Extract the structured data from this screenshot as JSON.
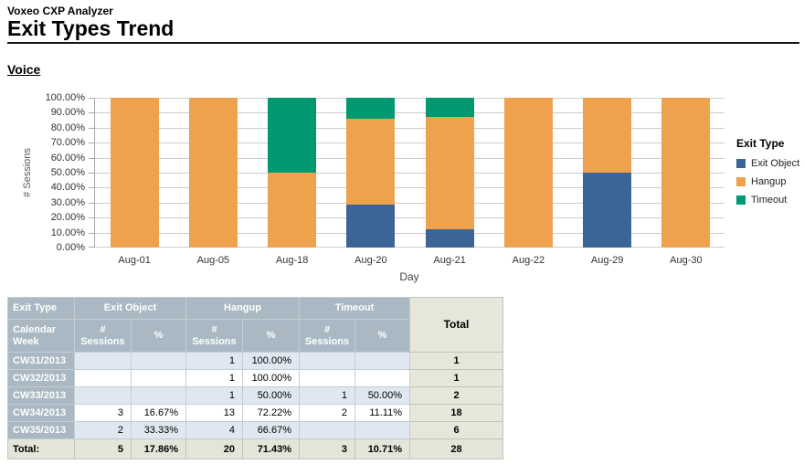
{
  "header": {
    "app_name": "Voxeo CXP Analyzer",
    "page_title": "Exit Types Trend",
    "section_title": "Voice"
  },
  "chart_data": {
    "type": "bar",
    "stacked": true,
    "title": "",
    "xlabel": "Day",
    "ylabel": "# Sessions",
    "categories": [
      "Aug-01",
      "Aug-05",
      "Aug-18",
      "Aug-20",
      "Aug-21",
      "Aug-22",
      "Aug-29",
      "Aug-30"
    ],
    "series": [
      {
        "name": "Exit Object",
        "color": "#3A6596",
        "values": [
          0,
          0,
          0,
          28.57,
          12.5,
          0,
          50,
          0
        ]
      },
      {
        "name": "Hangup",
        "color": "#EFA24E",
        "values": [
          100,
          100,
          50,
          57.14,
          75,
          100,
          50,
          100
        ]
      },
      {
        "name": "Timeout",
        "color": "#009972",
        "values": [
          0,
          0,
          50,
          14.29,
          12.5,
          0,
          0,
          0
        ]
      }
    ],
    "ylim": [
      0,
      100
    ],
    "ytick_labels": [
      "0.00%",
      "10.00%",
      "20.00%",
      "30.00%",
      "40.00%",
      "50.00%",
      "60.00%",
      "70.00%",
      "80.00%",
      "90.00%",
      "100.00%"
    ],
    "grid": "horizontal",
    "legend_title": "Exit Type",
    "legend_position": "right"
  },
  "table": {
    "corner_header_top": "Exit Type",
    "corner_header_bottom": "Calendar Week",
    "group_headers": [
      "Exit Object",
      "Hangup",
      "Timeout"
    ],
    "sub_headers": [
      "# Sessions",
      "%"
    ],
    "total_header": "Total",
    "rows": [
      {
        "week": "CW31/2013",
        "values": [
          "",
          "",
          "1",
          "100.00%",
          "",
          ""
        ],
        "total": "1"
      },
      {
        "week": "CW32/2013",
        "values": [
          "",
          "",
          "1",
          "100.00%",
          "",
          ""
        ],
        "total": "1"
      },
      {
        "week": "CW33/2013",
        "values": [
          "",
          "",
          "1",
          "50.00%",
          "1",
          "50.00%"
        ],
        "total": "2"
      },
      {
        "week": "CW34/2013",
        "values": [
          "3",
          "16.67%",
          "13",
          "72.22%",
          "2",
          "11.11%"
        ],
        "total": "18"
      },
      {
        "week": "CW35/2013",
        "values": [
          "2",
          "33.33%",
          "4",
          "66.67%",
          "",
          ""
        ],
        "total": "6"
      }
    ],
    "total_row": {
      "label": "Total:",
      "values": [
        "5",
        "17.86%",
        "20",
        "71.43%",
        "3",
        "10.71%"
      ],
      "total": "28"
    }
  },
  "palette": {
    "table_header_bg": "#A9B8C2",
    "row_alt_bg": "#DFE8F1",
    "total_bg": "#E6E6DA",
    "gridline": "#CCCCCC"
  }
}
